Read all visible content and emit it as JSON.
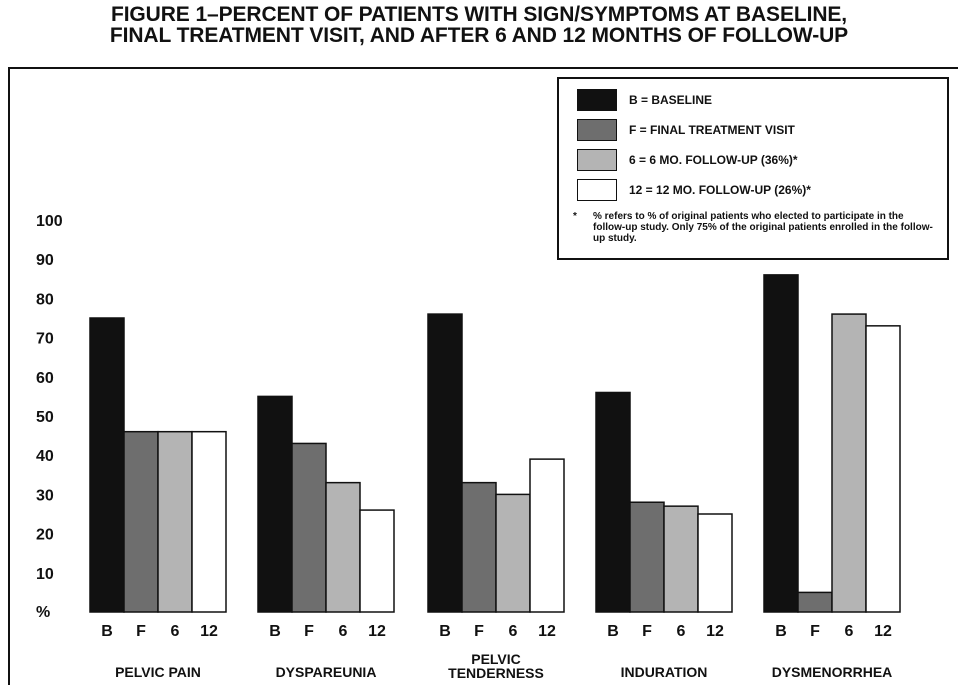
{
  "title": {
    "line1": "FIGURE 1–PERCENT OF PATIENTS WITH SIGN/SYMPTOMS AT BASELINE,",
    "line2": "FINAL TREATMENT VISIT, AND AFTER 6 AND 12 MONTHS OF FOLLOW-UP"
  },
  "legend": {
    "items": [
      {
        "key": "B",
        "label": "B = BASELINE",
        "color": "#111111"
      },
      {
        "key": "F",
        "label": "F = FINAL TREATMENT VISIT",
        "color": "#6e6e6e"
      },
      {
        "key": "6",
        "label": "6 = 6 MO. FOLLOW-UP (36%)*",
        "color": "#b4b4b4"
      },
      {
        "key": "12",
        "label": "12 = 12 MO. FOLLOW-UP (26%)*",
        "color": "#ffffff"
      }
    ],
    "note_marker": "*",
    "note": "% refers to % of original patients who elected to participate in the follow-up study. Only 75% of the original patients enrolled in the follow-up study."
  },
  "chart_data": {
    "type": "bar",
    "title": "FIGURE 1–PERCENT OF PATIENTS WITH SIGN/SYMPTOMS AT BASELINE, FINAL TREATMENT VISIT, AND AFTER 6 AND 12 MONTHS OF FOLLOW-UP",
    "ylabel": "%",
    "ylim": [
      0,
      100
    ],
    "yticks": [
      "10",
      "20",
      "30",
      "40",
      "50",
      "60",
      "70",
      "80",
      "90",
      "100"
    ],
    "grid": false,
    "legend_position": "top-right",
    "group_labels": [
      [
        "PELVIC PAIN"
      ],
      [
        "DYSPAREUNIA"
      ],
      [
        "PELVIC",
        "TENDERNESS"
      ],
      [
        "INDURATION"
      ],
      [
        "DYSMENORRHEA"
      ]
    ],
    "bar_labels": [
      "B",
      "F",
      "6",
      "12"
    ],
    "series": [
      {
        "name": "B = BASELINE",
        "values": [
          75,
          55,
          76,
          56,
          86
        ]
      },
      {
        "name": "F = FINAL TREATMENT VISIT",
        "values": [
          46,
          43,
          33,
          28,
          5
        ]
      },
      {
        "name": "6 = 6 MO. FOLLOW-UP (36%)*",
        "values": [
          46,
          33,
          30,
          27,
          76
        ]
      },
      {
        "name": "12 = 12 MO. FOLLOW-UP (26%)*",
        "values": [
          46,
          26,
          39,
          25,
          73
        ]
      }
    ]
  }
}
